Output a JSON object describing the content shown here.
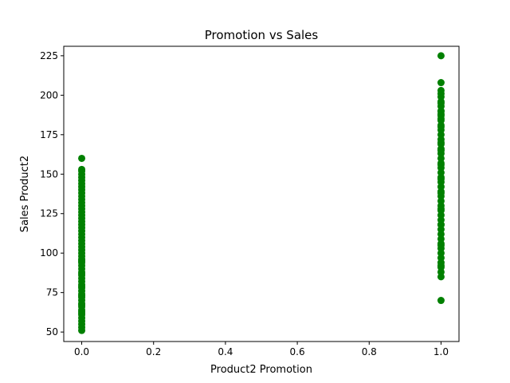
{
  "chart_data": {
    "type": "scatter",
    "title": "Promotion vs Sales",
    "xlabel": "Product2 Promotion",
    "ylabel": "Sales Product2",
    "xlim": [
      -0.05,
      1.05
    ],
    "ylim": [
      44,
      231
    ],
    "x_ticks": [
      "0.0",
      "0.2",
      "0.4",
      "0.6",
      "0.8",
      "1.0"
    ],
    "y_ticks": [
      "50",
      "75",
      "100",
      "125",
      "150",
      "175",
      "200",
      "225"
    ],
    "grid": false,
    "legend": "none",
    "marker_color": "#008000",
    "series": [
      {
        "x": [
          0,
          0,
          0,
          0,
          0,
          0,
          0,
          0,
          0,
          0,
          0,
          0,
          0,
          0,
          0,
          0,
          0,
          0,
          0,
          0,
          0,
          0,
          0,
          0,
          0,
          0,
          0,
          0,
          0,
          0,
          0,
          0,
          0,
          0,
          0,
          0,
          0,
          0,
          0,
          0,
          0,
          0,
          0,
          0,
          0,
          0,
          0,
          0,
          0,
          0,
          0,
          0,
          0,
          0,
          0,
          0,
          0,
          0,
          0,
          0,
          1,
          1,
          1,
          1,
          1,
          1,
          1,
          1,
          1,
          1,
          1,
          1,
          1,
          1,
          1,
          1,
          1,
          1,
          1,
          1,
          1,
          1,
          1,
          1,
          1,
          1,
          1,
          1,
          1,
          1,
          1,
          1,
          1,
          1,
          1,
          1,
          1,
          1,
          1,
          1,
          1,
          1,
          1,
          1,
          1,
          1,
          1,
          1,
          1,
          1,
          1,
          1,
          1,
          1,
          1,
          1,
          1,
          1
        ],
        "y": [
          51,
          53,
          55,
          57,
          59,
          61,
          63,
          64,
          66,
          68,
          70,
          72,
          74,
          76,
          78,
          80,
          82,
          84,
          86,
          88,
          90,
          92,
          94,
          96,
          98,
          100,
          102,
          104,
          106,
          108,
          110,
          112,
          114,
          116,
          118,
          120,
          122,
          124,
          126,
          128,
          130,
          132,
          134,
          136,
          138,
          140,
          142,
          144,
          146,
          148,
          150,
          152,
          153,
          160,
          62,
          67,
          73,
          79,
          87,
          95,
          70,
          85,
          88,
          91,
          94,
          97,
          100,
          103,
          106,
          109,
          112,
          115,
          118,
          121,
          124,
          127,
          130,
          133,
          136,
          139,
          142,
          145,
          148,
          151,
          154,
          157,
          160,
          163,
          166,
          169,
          172,
          175,
          178,
          181,
          184,
          187,
          190,
          193,
          196,
          199,
          201,
          203,
          208,
          225,
          92,
          105,
          118,
          128,
          138,
          147,
          156,
          165,
          170,
          180,
          185,
          188,
          190,
          195
        ]
      }
    ]
  }
}
